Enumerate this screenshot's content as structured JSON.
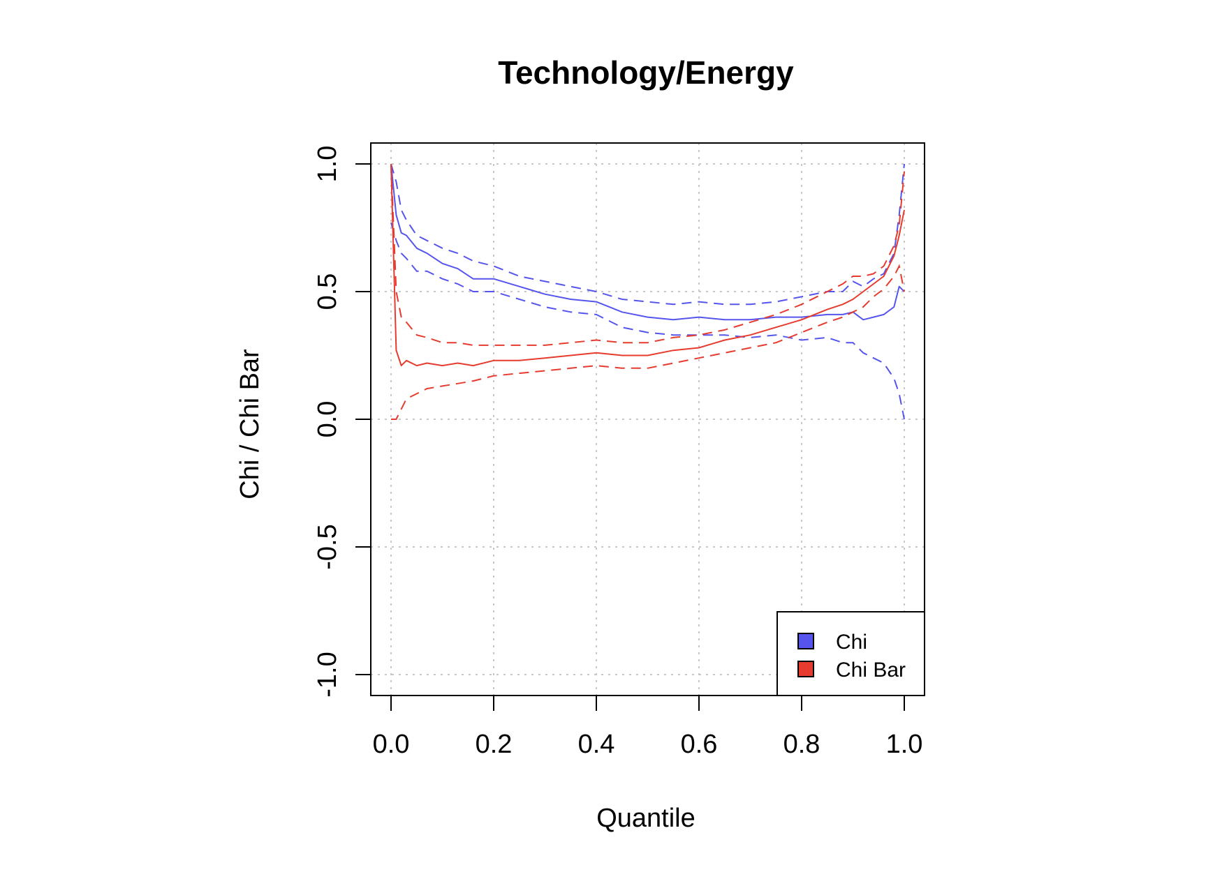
{
  "chart_data": {
    "type": "line",
    "title": "Technology/Energy",
    "xlabel": "Quantile",
    "ylabel": "Chi / Chi Bar",
    "xlim": [
      0,
      1
    ],
    "ylim": [
      -1,
      1
    ],
    "xticks": [
      0.0,
      0.2,
      0.4,
      0.6,
      0.8,
      1.0
    ],
    "xtick_labels": [
      "0.0",
      "0.2",
      "0.4",
      "0.6",
      "0.8",
      "1.0"
    ],
    "yticks": [
      -1.0,
      -0.5,
      0.0,
      0.5,
      1.0
    ],
    "ytick_labels": [
      "-1.0",
      "-0.5",
      "0.0",
      "0.5",
      "1.0"
    ],
    "grid": true,
    "legend_position": "bottom-right",
    "x": [
      0.0,
      0.01,
      0.02,
      0.03,
      0.05,
      0.07,
      0.1,
      0.13,
      0.16,
      0.2,
      0.25,
      0.3,
      0.35,
      0.4,
      0.45,
      0.5,
      0.55,
      0.6,
      0.65,
      0.7,
      0.75,
      0.8,
      0.85,
      0.88,
      0.9,
      0.92,
      0.94,
      0.96,
      0.98,
      0.99,
      1.0
    ],
    "series": [
      {
        "name": "Chi",
        "color": "#5555ee",
        "values": [
          1.0,
          0.8,
          0.73,
          0.72,
          0.67,
          0.65,
          0.61,
          0.59,
          0.55,
          0.55,
          0.52,
          0.49,
          0.47,
          0.46,
          0.42,
          0.4,
          0.39,
          0.4,
          0.39,
          0.39,
          0.4,
          0.4,
          0.41,
          0.41,
          0.42,
          0.39,
          0.4,
          0.41,
          0.44,
          0.52,
          0.5
        ],
        "upper": [
          1.0,
          0.93,
          0.82,
          0.78,
          0.72,
          0.7,
          0.67,
          0.65,
          0.62,
          0.6,
          0.56,
          0.54,
          0.52,
          0.5,
          0.47,
          0.46,
          0.45,
          0.46,
          0.45,
          0.45,
          0.46,
          0.48,
          0.5,
          0.5,
          0.54,
          0.52,
          0.55,
          0.57,
          0.65,
          0.8,
          1.0
        ],
        "lower": [
          0.77,
          0.7,
          0.65,
          0.63,
          0.58,
          0.58,
          0.55,
          0.53,
          0.5,
          0.5,
          0.47,
          0.44,
          0.42,
          0.41,
          0.36,
          0.34,
          0.33,
          0.33,
          0.33,
          0.32,
          0.33,
          0.31,
          0.32,
          0.3,
          0.3,
          0.26,
          0.24,
          0.22,
          0.16,
          0.1,
          0.0
        ]
      },
      {
        "name": "Chi Bar",
        "color": "#e63b2e",
        "values": [
          1.0,
          0.27,
          0.21,
          0.23,
          0.21,
          0.22,
          0.21,
          0.22,
          0.21,
          0.23,
          0.23,
          0.24,
          0.25,
          0.26,
          0.25,
          0.25,
          0.27,
          0.28,
          0.31,
          0.33,
          0.36,
          0.39,
          0.43,
          0.45,
          0.47,
          0.5,
          0.53,
          0.56,
          0.64,
          0.72,
          0.82
        ],
        "upper": [
          1.0,
          0.5,
          0.4,
          0.38,
          0.33,
          0.32,
          0.3,
          0.3,
          0.29,
          0.29,
          0.29,
          0.29,
          0.3,
          0.31,
          0.3,
          0.3,
          0.32,
          0.33,
          0.35,
          0.38,
          0.41,
          0.45,
          0.5,
          0.53,
          0.56,
          0.56,
          0.57,
          0.6,
          0.68,
          0.76,
          0.97
        ],
        "lower": [
          0.0,
          0.0,
          0.04,
          0.08,
          0.1,
          0.12,
          0.13,
          0.14,
          0.15,
          0.17,
          0.18,
          0.19,
          0.2,
          0.21,
          0.2,
          0.2,
          0.22,
          0.24,
          0.26,
          0.28,
          0.3,
          0.34,
          0.38,
          0.4,
          0.42,
          0.44,
          0.48,
          0.51,
          0.56,
          0.6,
          0.5
        ]
      }
    ]
  }
}
